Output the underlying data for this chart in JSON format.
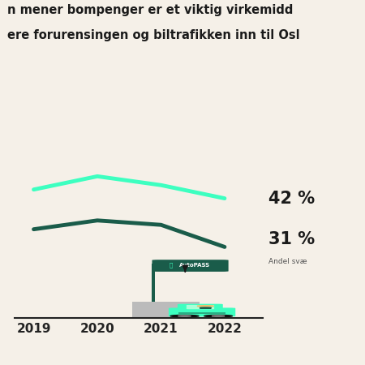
{
  "title_line1": "n mener bompenger er et viktig virkemidd",
  "title_line2": "ere forurensingen og biltrafikken inn til Osl",
  "years": [
    2019,
    2020,
    2021,
    2022
  ],
  "series1_values": [
    44,
    47,
    45,
    42
  ],
  "series2_values": [
    35,
    37,
    36,
    31
  ],
  "series1_color": "#3DFFC0",
  "series2_color": "#1A5C4A",
  "series1_label": "42 %",
  "series2_label": "31 %",
  "sublabel": "Andel svæ",
  "background_color": "#F5F0E8",
  "title_color": "#1A1A1A",
  "axis_color": "#222222",
  "line_width": 3.5,
  "ylim_min": 15,
  "ylim_max": 58
}
